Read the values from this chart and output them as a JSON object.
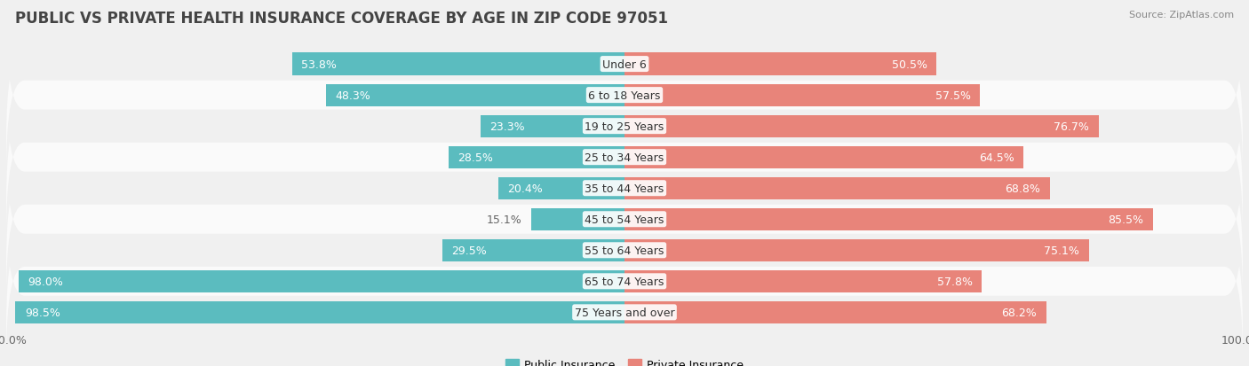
{
  "title": "PUBLIC VS PRIVATE HEALTH INSURANCE COVERAGE BY AGE IN ZIP CODE 97051",
  "source": "Source: ZipAtlas.com",
  "categories": [
    "Under 6",
    "6 to 18 Years",
    "19 to 25 Years",
    "25 to 34 Years",
    "35 to 44 Years",
    "45 to 54 Years",
    "55 to 64 Years",
    "65 to 74 Years",
    "75 Years and over"
  ],
  "public_values": [
    53.8,
    48.3,
    23.3,
    28.5,
    20.4,
    15.1,
    29.5,
    98.0,
    98.5
  ],
  "private_values": [
    50.5,
    57.5,
    76.7,
    64.5,
    68.8,
    85.5,
    75.1,
    57.8,
    68.2
  ],
  "public_color": "#5bbcbf",
  "private_color": "#e8847a",
  "row_bg_colors": [
    "#f0f0f0",
    "#fafafa"
  ],
  "title_color": "#444444",
  "label_color_inside": "#ffffff",
  "label_color_outside": "#666666",
  "axis_label_color": "#666666",
  "legend_labels": [
    "Public Insurance",
    "Private Insurance"
  ],
  "x_max": 100.0,
  "title_fontsize": 12,
  "label_fontsize": 9,
  "category_fontsize": 9,
  "axis_fontsize": 9,
  "legend_fontsize": 9
}
